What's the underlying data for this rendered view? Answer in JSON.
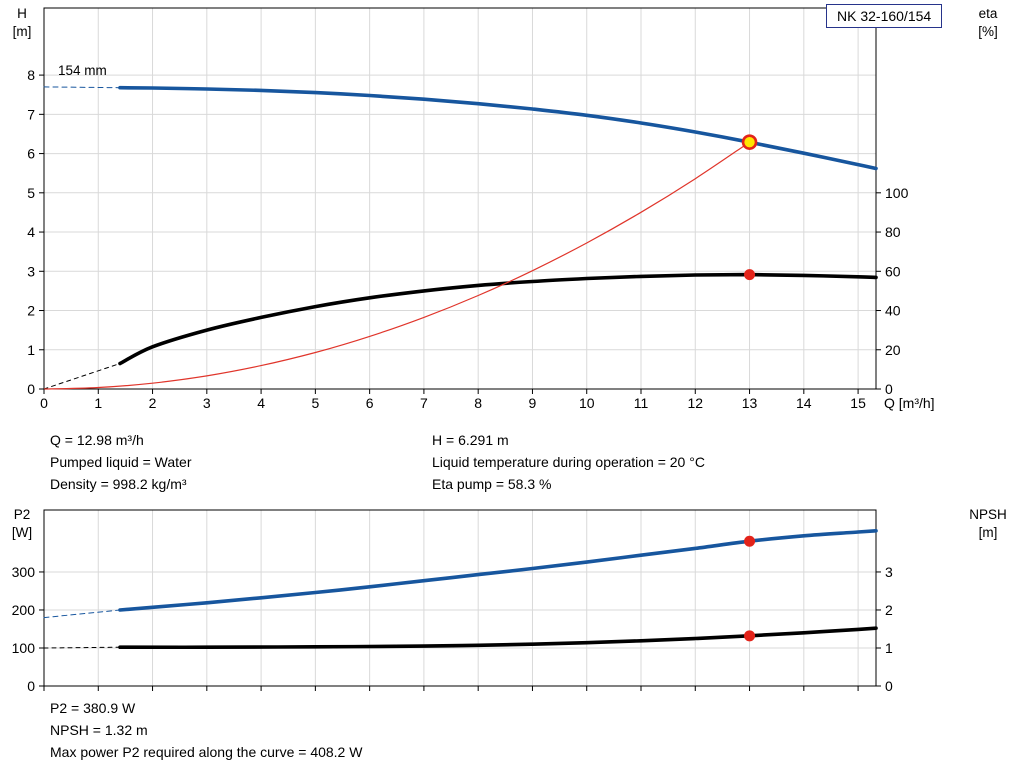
{
  "title_box": "NK 32-160/154",
  "colors": {
    "grid": "#d9d9d9",
    "axis": "#000000",
    "curve_blue": "#17569e",
    "curve_black": "#000000",
    "system_red": "#e0352b",
    "duty_red": "#e3231a",
    "duty_yellow": "#ffe600",
    "title_box_border": "#27348b"
  },
  "annotations_top": {
    "left": [
      "Q = 12.98 m³/h",
      "Pumped liquid = Water",
      "Density = 998.2 kg/m³"
    ],
    "right": [
      "H = 6.291 m",
      "Liquid temperature during operation = 20 °C",
      "Eta pump = 58.3 %"
    ]
  },
  "annotations_bottom": [
    "P2 = 380.9 W",
    "NPSH = 1.32 m",
    "Max power P2 required along the curve = 408.2 W"
  ],
  "chart_data": [
    {
      "type": "line",
      "xlabel": "Q [m³/h]",
      "ylabel_left": [
        "H",
        "[m]"
      ],
      "ylabel_right": [
        "eta",
        "[%]"
      ],
      "impeller_label": "154 mm",
      "xlim": [
        0,
        15.33
      ],
      "ylim_left": [
        0,
        9.71
      ],
      "ylim_right": [
        0,
        194.2
      ],
      "x_ticks": [
        0,
        1,
        2,
        3,
        4,
        5,
        6,
        7,
        8,
        9,
        10,
        11,
        12,
        13,
        14,
        15
      ],
      "y_ticks_left": [
        0,
        1,
        2,
        3,
        4,
        5,
        6,
        7,
        8
      ],
      "y_ticks_right": [
        0,
        20,
        40,
        60,
        80,
        100
      ],
      "grid": true,
      "legend": "none",
      "series": [
        {
          "name": "head-curve",
          "axis": "left",
          "color": "#17569e",
          "width": 3.6,
          "points": [
            [
              1.4,
              7.68
            ],
            [
              2,
              7.67
            ],
            [
              3,
              7.645
            ],
            [
              4,
              7.61
            ],
            [
              5,
              7.555
            ],
            [
              6,
              7.48
            ],
            [
              7,
              7.385
            ],
            [
              8,
              7.27
            ],
            [
              9,
              7.135
            ],
            [
              10,
              6.975
            ],
            [
              11,
              6.78
            ],
            [
              12,
              6.55
            ],
            [
              13,
              6.291
            ],
            [
              14,
              6.01
            ],
            [
              15,
              5.72
            ],
            [
              15.33,
              5.62
            ]
          ]
        },
        {
          "name": "head-curve-dashed-lead",
          "axis": "left",
          "color": "#17569e",
          "width": 1,
          "dash": "5 4",
          "points": [
            [
              0,
              7.7
            ],
            [
              1.4,
              7.68
            ]
          ]
        },
        {
          "name": "efficiency-curve",
          "axis": "right",
          "color": "#000000",
          "width": 3.6,
          "points": [
            [
              1.4,
              13
            ],
            [
              2,
              21.5
            ],
            [
              3,
              30
            ],
            [
              4,
              36.5
            ],
            [
              5,
              42
            ],
            [
              6,
              46.5
            ],
            [
              7,
              50
            ],
            [
              8,
              52.8
            ],
            [
              9,
              54.8
            ],
            [
              10,
              56.3
            ],
            [
              11,
              57.4
            ],
            [
              12,
              58.1
            ],
            [
              13,
              58.3
            ],
            [
              14,
              57.9
            ],
            [
              15,
              57.2
            ],
            [
              15.33,
              56.9
            ]
          ]
        },
        {
          "name": "efficiency-dashed-lead",
          "axis": "right",
          "color": "#000000",
          "width": 1,
          "dash": "4 4",
          "points": [
            [
              0,
              0
            ],
            [
              1.4,
              13
            ]
          ]
        },
        {
          "name": "system-curve",
          "axis": "left",
          "color": "#e0352b",
          "width": 1.2,
          "points": [
            [
              0,
              0
            ],
            [
              1,
              0.037
            ],
            [
              2,
              0.149
            ],
            [
              3,
              0.335
            ],
            [
              4,
              0.596
            ],
            [
              5,
              0.931
            ],
            [
              6,
              1.34
            ],
            [
              7,
              1.824
            ],
            [
              8,
              2.382
            ],
            [
              9,
              3.015
            ],
            [
              10,
              3.722
            ],
            [
              11,
              4.504
            ],
            [
              12,
              5.36
            ],
            [
              13,
              6.291
            ]
          ]
        }
      ],
      "markers": [
        {
          "name": "duty-point-head",
          "x": 13,
          "y": 6.291,
          "axis": "left",
          "style": "operating"
        },
        {
          "name": "duty-point-efficiency",
          "x": 13,
          "y": 58.3,
          "axis": "right",
          "style": "dot"
        }
      ]
    },
    {
      "type": "line",
      "xlabel": "",
      "ylabel_left": [
        "P2",
        "[W]"
      ],
      "ylabel_right": [
        "NPSH",
        "[m]"
      ],
      "xlim": [
        0,
        15.33
      ],
      "ylim_left": [
        0,
        463
      ],
      "ylim_right": [
        0,
        4.63
      ],
      "x_ticks": [
        0,
        1,
        2,
        3,
        4,
        5,
        6,
        7,
        8,
        9,
        10,
        11,
        12,
        13,
        14,
        15
      ],
      "y_ticks_left": [
        0,
        100,
        200,
        300
      ],
      "y_ticks_right": [
        0,
        1,
        2,
        3
      ],
      "grid": true,
      "legend": "none",
      "series": [
        {
          "name": "p2-curve",
          "axis": "left",
          "color": "#17569e",
          "width": 3.6,
          "points": [
            [
              1.4,
              200
            ],
            [
              2,
              207
            ],
            [
              3,
              219
            ],
            [
              4,
              232
            ],
            [
              5,
              246
            ],
            [
              6,
              261
            ],
            [
              7,
              277
            ],
            [
              8,
              293
            ],
            [
              9,
              309
            ],
            [
              10,
              326
            ],
            [
              11,
              344
            ],
            [
              12,
              362
            ],
            [
              13,
              380.9
            ],
            [
              14,
              395
            ],
            [
              15,
              405
            ],
            [
              15.33,
              408.2
            ]
          ]
        },
        {
          "name": "p2-dashed-lead",
          "axis": "left",
          "color": "#17569e",
          "width": 1,
          "dash": "5 4",
          "points": [
            [
              0,
              180
            ],
            [
              1.4,
              200
            ]
          ]
        },
        {
          "name": "npsh-curve",
          "axis": "right",
          "color": "#000000",
          "width": 3.6,
          "points": [
            [
              1.4,
              1.02
            ],
            [
              3,
              1.02
            ],
            [
              5,
              1.03
            ],
            [
              7,
              1.05
            ],
            [
              8,
              1.07
            ],
            [
              9,
              1.1
            ],
            [
              10,
              1.14
            ],
            [
              11,
              1.19
            ],
            [
              12,
              1.25
            ],
            [
              13,
              1.32
            ],
            [
              14,
              1.4
            ],
            [
              15,
              1.49
            ],
            [
              15.33,
              1.52
            ]
          ]
        },
        {
          "name": "npsh-dashed-lead",
          "axis": "right",
          "color": "#000000",
          "width": 1,
          "dash": "4 4",
          "points": [
            [
              0,
              1.0
            ],
            [
              1.4,
              1.02
            ]
          ]
        }
      ],
      "markers": [
        {
          "name": "duty-point-p2",
          "x": 13,
          "y": 380.9,
          "axis": "left",
          "style": "dot"
        },
        {
          "name": "duty-point-npsh",
          "x": 13,
          "y": 1.32,
          "axis": "right",
          "style": "dot"
        }
      ]
    }
  ]
}
